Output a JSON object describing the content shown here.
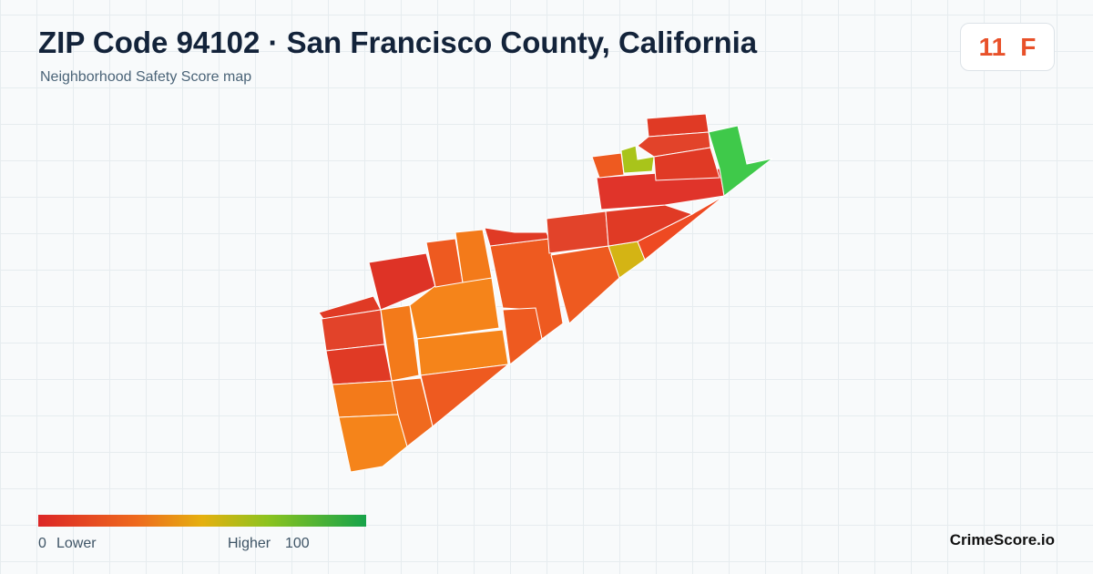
{
  "header": {
    "title": "ZIP Code 94102 · San Francisco County, California",
    "subtitle": "Neighborhood Safety Score map"
  },
  "score": {
    "value": 11,
    "grade": "F"
  },
  "legend": {
    "min": 0,
    "min_label": "Lower",
    "max_label": "Higher",
    "max": 100
  },
  "brand": "CrimeScore.io"
}
